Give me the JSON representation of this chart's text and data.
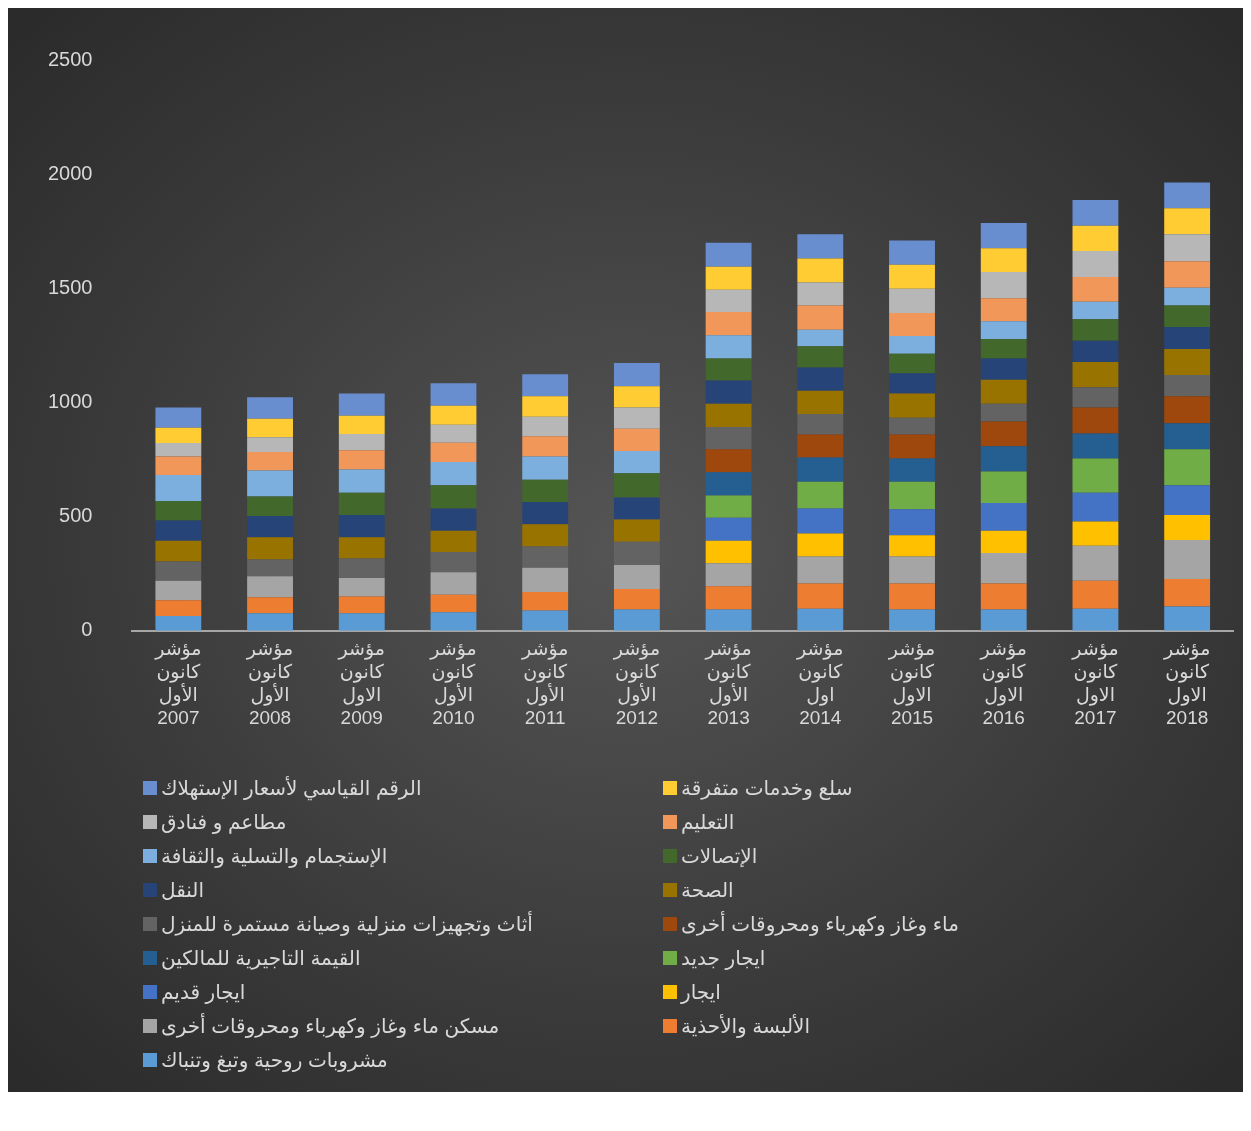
{
  "chart_data": {
    "type": "bar",
    "stacked": true,
    "grid": false,
    "legend": "bottom",
    "categories": [
      "مؤشر كانون الأول 2007",
      "مؤشر كانون الأول 2008",
      "مؤشر كانون الاول 2009",
      "مؤشر كانون الأول 2010",
      "مؤشر كانون الأول 2011",
      "مؤشر كانون الأول 2012",
      "مؤشر كانون الأول 2013",
      "مؤشر كانون اول 2014",
      "مؤشر كانون الاول 2015",
      "مؤشر كانون الاول 2016",
      "مؤشر كانون الاول 2017",
      "مؤشر كانون الاول 2018"
    ],
    "ylim": [
      0,
      2500
    ],
    "yticks": [
      0,
      500,
      1000,
      1500,
      2000,
      2500
    ],
    "series": [
      {
        "name": "مشروبات روحية وتبغ وتنباك",
        "color": "#5b9bd5",
        "values": [
          65,
          77,
          77,
          81,
          89,
          93,
          93,
          97,
          93,
          93,
          97,
          106
        ]
      },
      {
        "name": "الألبسة  والأحذية",
        "color": "#ed7d31",
        "values": [
          69,
          70,
          73,
          77,
          81,
          90,
          102,
          110,
          114,
          114,
          122,
          121
        ]
      },
      {
        "name": "مسكن ماء وغاز وكهرباء ومحروقات أخرى",
        "color": "#a5a5a5",
        "values": [
          85,
          92,
          81,
          98,
          106,
          105,
          101,
          118,
          118,
          134,
          154,
          171
        ]
      },
      {
        "name": "ايجار",
        "color": "#ffc000",
        "values": [
          null,
          null,
          null,
          null,
          null,
          null,
          98,
          101,
          93,
          97,
          106,
          109
        ]
      },
      {
        "name": "ايجار قديم",
        "color": "#4472c4",
        "values": [
          null,
          null,
          null,
          null,
          null,
          null,
          101,
          110,
          114,
          122,
          126,
          130
        ]
      },
      {
        "name": "ايجار جديد",
        "color": "#70ad47",
        "values": [
          null,
          null,
          null,
          null,
          null,
          null,
          98,
          117,
          121,
          138,
          150,
          158
        ]
      },
      {
        "name": "القيمة التاجيرية للمالكين",
        "color": "#255e91",
        "values": [
          null,
          null,
          null,
          null,
          null,
          null,
          101,
          106,
          102,
          110,
          109,
          114
        ]
      },
      {
        "name": "ماء وغاز وكهرباء ومحروقات أخرى",
        "color": "#9e480e",
        "values": [
          null,
          null,
          null,
          null,
          null,
          null,
          101,
          101,
          105,
          109,
          114,
          118
        ]
      },
      {
        "name": "أثاث وتجهيزات منزلية  وصيانة مستمرة للمنزل",
        "color": "#636363",
        "values": [
          84,
          73,
          86,
          89,
          93,
          102,
          98,
          90,
          73,
          77,
          89,
          93
        ]
      },
      {
        "name": "الصحة",
        "color": "#997300",
        "values": [
          91,
          98,
          93,
          93,
          98,
          97,
          101,
          101,
          106,
          106,
          110,
          114
        ]
      },
      {
        "name": "النقل",
        "color": "#264478",
        "values": [
          89,
          93,
          97,
          98,
          97,
          97,
          102,
          102,
          89,
          93,
          93,
          97
        ]
      },
      {
        "name": "الإتصالات",
        "color": "#43682b",
        "values": [
          85,
          85,
          98,
          101,
          98,
          106,
          97,
          93,
          85,
          85,
          94,
          94
        ]
      },
      {
        "name": "الإستجمام والتسلية والثقافة",
        "color": "#7cafdd",
        "values": [
          114,
          114,
          101,
          102,
          101,
          97,
          102,
          73,
          78,
          78,
          77,
          77
        ]
      },
      {
        "name": "التعليم",
        "color": "#f1975a",
        "values": [
          81,
          81,
          85,
          85,
          89,
          98,
          101,
          106,
          101,
          101,
          109,
          117
        ]
      },
      {
        "name": "مطاعم و فنادق",
        "color": "#b7b7b7",
        "values": [
          60,
          65,
          71,
          78,
          86,
          93,
          98,
          101,
          106,
          114,
          114,
          118
        ]
      },
      {
        "name": "سلع وخدمات متفرقة",
        "color": "#ffcd33",
        "values": [
          66,
          81,
          80,
          84,
          89,
          93,
          101,
          105,
          105,
          105,
          110,
          114
        ]
      },
      {
        "name": "الرقم القياسي لأسعار الإستهلاك",
        "color": "#698ed0",
        "values": [
          89,
          94,
          97,
          98,
          97,
          102,
          105,
          106,
          106,
          110,
          113,
          113
        ]
      }
    ]
  }
}
